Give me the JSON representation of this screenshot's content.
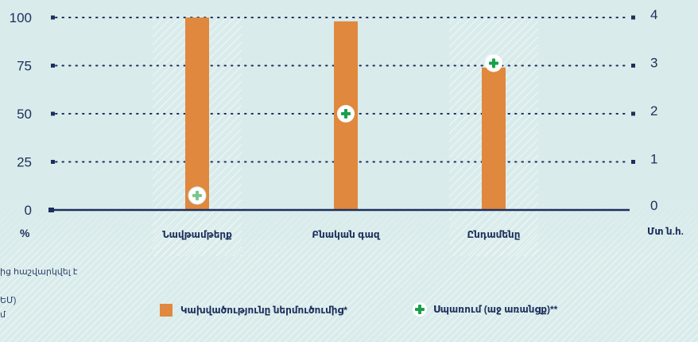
{
  "chart_data": {
    "type": "bar",
    "categories": [
      "Նավթամթերք",
      "Բնական գազ",
      "Ընդամենը"
    ],
    "series": [
      {
        "name": "Կախվածությունը ներմուծումից*",
        "axis": "left",
        "values": [
          100,
          98,
          74
        ]
      },
      {
        "name": "Սպառում (աջ առանցք)**",
        "axis": "right",
        "values": [
          0.3,
          2.0,
          3.05
        ]
      }
    ],
    "highlighted_categories": [
      "Նավթամթերք",
      "Ընդամենը"
    ],
    "y_left": {
      "ticks": [
        "0",
        "25",
        "50",
        "75",
        "100"
      ],
      "unit": "%",
      "ylim": [
        0,
        100
      ]
    },
    "y_right": {
      "ticks": [
        "0",
        "1",
        "2",
        "3",
        "4"
      ],
      "unit": "Մտ ն.հ.",
      "ylim": [
        0,
        4
      ]
    },
    "grid": "dotted",
    "legend_position": "bottom",
    "colors": {
      "bar": "#e0883e",
      "marker": "#1aa04b",
      "marker_faded": "#7cc58d",
      "axis": "#1d2f5c",
      "background": "#d9eceb"
    }
  },
  "footnotes": [
    "ից հաշվարկվել է",
    "ԵՄ)",
    "մ"
  ]
}
